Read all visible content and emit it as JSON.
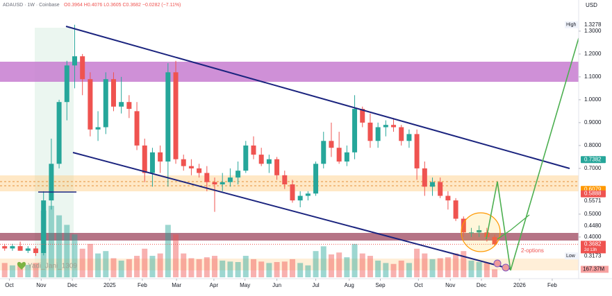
{
  "header": {
    "symbol_line": "ADAUSD · 1W · Coinbase",
    "ohlc": "O0.3964 H0.4076 L0.3605 C0.3682 −0.0282 (−7.11%)",
    "currency": "USD"
  },
  "chart_data": {
    "type": "candlestick",
    "up_color": "#26a69a",
    "down_color": "#ef5350",
    "candles": {
      "open": [
        0.36,
        0.35,
        0.36,
        0.34,
        0.35,
        0.33,
        0.56,
        0.72,
        0.99,
        1.15,
        1.19,
        1.09,
        0.87,
        0.88,
        1.09,
        0.97,
        0.99,
        0.95,
        0.8,
        0.68,
        0.77,
        0.73,
        1.12,
        0.74,
        0.71,
        0.7,
        0.68,
        0.64,
        0.63,
        0.64,
        0.66,
        0.69,
        0.8,
        0.76,
        0.72,
        0.74,
        0.67,
        0.63,
        0.56,
        0.58,
        0.59,
        0.72,
        0.82,
        0.79,
        0.73,
        0.77,
        0.96,
        0.9,
        0.82,
        0.88,
        0.89,
        0.88,
        0.82,
        0.85,
        0.7,
        0.62,
        0.64,
        0.58,
        0.56,
        0.48,
        0.42,
        0.42,
        0.42,
        0.4
      ],
      "high": [
        0.37,
        0.37,
        0.38,
        0.36,
        0.36,
        0.6,
        0.83,
        1.0,
        1.17,
        1.3278,
        1.2,
        1.12,
        0.95,
        1.12,
        1.12,
        1.1,
        1.02,
        0.99,
        0.83,
        0.79,
        0.8,
        1.16,
        1.17,
        0.76,
        0.74,
        0.72,
        0.71,
        0.66,
        0.68,
        0.7,
        0.73,
        0.82,
        0.84,
        0.79,
        0.76,
        0.75,
        0.69,
        0.65,
        0.6,
        0.6,
        0.73,
        0.86,
        0.9,
        0.86,
        0.8,
        1.02,
        0.97,
        0.94,
        0.9,
        0.91,
        0.92,
        0.89,
        0.87,
        0.87,
        0.73,
        0.66,
        0.66,
        0.6,
        0.57,
        0.49,
        0.44,
        0.45,
        0.44,
        0.41
      ],
      "low": [
        0.34,
        0.34,
        0.34,
        0.33,
        0.3173,
        0.32,
        0.52,
        0.7,
        0.91,
        1.05,
        1.02,
        0.84,
        0.82,
        0.85,
        0.95,
        0.94,
        0.92,
        0.78,
        0.64,
        0.62,
        0.68,
        0.62,
        0.72,
        0.69,
        0.67,
        0.66,
        0.6,
        0.51,
        0.6,
        0.62,
        0.63,
        0.68,
        0.74,
        0.71,
        0.68,
        0.65,
        0.61,
        0.55,
        0.53,
        0.56,
        0.58,
        0.7,
        0.75,
        0.72,
        0.71,
        0.74,
        0.88,
        0.79,
        0.79,
        0.84,
        0.86,
        0.8,
        0.79,
        0.65,
        0.58,
        0.58,
        0.57,
        0.52,
        0.47,
        0.4,
        0.4,
        0.4,
        0.38,
        0.36
      ],
      "close": [
        0.35,
        0.36,
        0.34,
        0.35,
        0.33,
        0.56,
        0.72,
        0.99,
        1.15,
        1.19,
        1.09,
        0.87,
        0.88,
        1.09,
        0.97,
        0.99,
        0.96,
        0.8,
        0.68,
        0.77,
        0.73,
        1.12,
        0.74,
        0.71,
        0.7,
        0.68,
        0.64,
        0.63,
        0.64,
        0.66,
        0.69,
        0.8,
        0.76,
        0.72,
        0.74,
        0.67,
        0.63,
        0.56,
        0.58,
        0.59,
        0.72,
        0.82,
        0.79,
        0.73,
        0.77,
        0.96,
        0.9,
        0.82,
        0.88,
        0.89,
        0.88,
        0.82,
        0.85,
        0.7,
        0.62,
        0.64,
        0.58,
        0.56,
        0.48,
        0.42,
        0.42,
        0.43,
        0.4,
        0.3682
      ]
    },
    "volume": {
      "values": [
        300,
        250,
        280,
        260,
        300,
        1400,
        1500,
        1300,
        1100,
        900,
        600,
        700,
        500,
        550,
        400,
        350,
        380,
        450,
        600,
        450,
        500,
        1100,
        900,
        500,
        400,
        380,
        420,
        450,
        350,
        330,
        320,
        450,
        380,
        330,
        300,
        320,
        330,
        380,
        300,
        250,
        550,
        650,
        480,
        520,
        420,
        700,
        500,
        450,
        350,
        300,
        280,
        350,
        300,
        600,
        500,
        380,
        400,
        420,
        500,
        550,
        350,
        320,
        300,
        167.37
      ],
      "vlim": [
        0,
        1600
      ],
      "label": "167.37M"
    },
    "xlim": [
      -0.6,
      73.8
    ],
    "xticks": [
      {
        "value": 0.6,
        "label": "Oct"
      },
      {
        "value": 4.7,
        "label": "Nov"
      },
      {
        "value": 8.7,
        "label": "Dec"
      },
      {
        "value": 13.5,
        "label": "2025"
      },
      {
        "value": 17.7,
        "label": "Feb"
      },
      {
        "value": 22.1,
        "label": "Mar"
      },
      {
        "value": 26.9,
        "label": "Apr"
      },
      {
        "value": 30.9,
        "label": "May"
      },
      {
        "value": 35,
        "label": "Jun"
      },
      {
        "value": 40,
        "label": "Jul"
      },
      {
        "value": 44.3,
        "label": "Aug"
      },
      {
        "value": 48.3,
        "label": "Sep"
      },
      {
        "value": 53.2,
        "label": "Oct"
      },
      {
        "value": 57.3,
        "label": "Nov"
      },
      {
        "value": 61.3,
        "label": "Dec"
      },
      {
        "value": 66.2,
        "label": "2026"
      },
      {
        "value": 70.4,
        "label": "Feb"
      }
    ],
    "ylim": [
      0.224,
      1.436
    ],
    "yticks": [
      {
        "value": 1.3,
        "label": "1.3000"
      },
      {
        "value": 1.2,
        "label": "1.2000"
      },
      {
        "value": 1.1,
        "label": "1.1000"
      },
      {
        "value": 1.0,
        "label": "1.0000"
      },
      {
        "value": 0.9,
        "label": "0.9000"
      },
      {
        "value": 0.8,
        "label": "0.8000"
      },
      {
        "value": 0.7,
        "label": "0.7000"
      },
      {
        "value": 0.5,
        "label": "0.5000"
      },
      {
        "value": 0.4,
        "label": "0.4000"
      }
    ],
    "price_labels": [
      {
        "value": 0.7382,
        "bg": "#26a69a",
        "text_color": "#ffffff"
      },
      {
        "value": 0.6079,
        "bg": "#ff9800",
        "text_color": "#ffffff"
      },
      {
        "value": 0.5888,
        "bg": "#ef5350",
        "text_color": "#ffffff"
      },
      {
        "value": 0.5571,
        "bg": "#ffffff",
        "text_color": "#131722"
      },
      {
        "value": 0.448,
        "label": "0.4480",
        "bg": "#ffffff",
        "text_color": "#131722"
      }
    ],
    "high_label": {
      "name": "High",
      "value": 1.3278
    },
    "low_label": {
      "name": "Low",
      "value": 0.3173
    },
    "last": {
      "value": 0.3682,
      "countdown": "2d 13h",
      "color": "#ef5350"
    },
    "annotation": "2-options",
    "watermark": "Yadi_Jani_1309"
  }
}
